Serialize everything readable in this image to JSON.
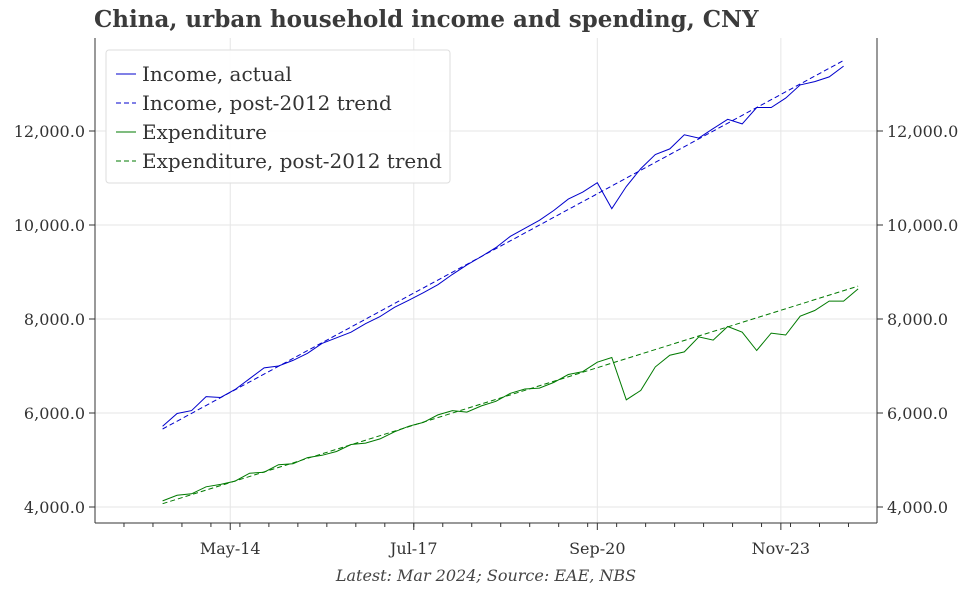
{
  "chart_data": {
    "type": "line",
    "title": "China, urban household income and spending, CNY",
    "source_note": "Latest: Mar 2024; Source: EAE, NBS",
    "xlabel": "",
    "ylabel": "",
    "x_ticks": [
      "May-14",
      "Jul-17",
      "Sep-20",
      "Nov-23"
    ],
    "y_ticks": [
      "4,000.0",
      "6,000.0",
      "8,000.0",
      "10,000.0",
      "12,000.0"
    ],
    "ylim": [
      3800,
      14000
    ],
    "grid": true,
    "legend_position": "top-left",
    "series": [
      {
        "name": "Income, actual",
        "color": "#0000cc",
        "dash": "solid",
        "points": [
          [
            "2013-03",
            5720
          ],
          [
            "2013-06",
            5990
          ],
          [
            "2013-09",
            6050
          ],
          [
            "2013-12",
            6350
          ],
          [
            "2014-03",
            6330
          ],
          [
            "2014-06",
            6500
          ],
          [
            "2014-09",
            6730
          ],
          [
            "2014-12",
            6960
          ],
          [
            "2015-03",
            7000
          ],
          [
            "2015-06",
            7120
          ],
          [
            "2015-09",
            7270
          ],
          [
            "2015-12",
            7480
          ],
          [
            "2016-03",
            7600
          ],
          [
            "2016-06",
            7720
          ],
          [
            "2016-09",
            7900
          ],
          [
            "2016-12",
            8050
          ],
          [
            "2017-03",
            8250
          ],
          [
            "2017-06",
            8400
          ],
          [
            "2017-09",
            8560
          ],
          [
            "2017-12",
            8730
          ],
          [
            "2018-03",
            8950
          ],
          [
            "2018-06",
            9150
          ],
          [
            "2018-09",
            9330
          ],
          [
            "2018-12",
            9520
          ],
          [
            "2019-03",
            9760
          ],
          [
            "2019-06",
            9930
          ],
          [
            "2019-09",
            10100
          ],
          [
            "2019-12",
            10310
          ],
          [
            "2020-03",
            10550
          ],
          [
            "2020-06",
            10700
          ],
          [
            "2020-09",
            10900
          ],
          [
            "2020-12",
            10350
          ],
          [
            "2021-03",
            10820
          ],
          [
            "2021-06",
            11200
          ],
          [
            "2021-09",
            11500
          ],
          [
            "2021-12",
            11620
          ],
          [
            "2022-03",
            11920
          ],
          [
            "2022-06",
            11850
          ],
          [
            "2022-09",
            12050
          ],
          [
            "2022-12",
            12250
          ],
          [
            "2023-03",
            12150
          ],
          [
            "2023-06",
            12500
          ],
          [
            "2023-09",
            12500
          ],
          [
            "2023-12",
            12700
          ],
          [
            "2024-03",
            12980
          ],
          [
            "2024-06",
            13050
          ],
          [
            "2024-09",
            13150
          ],
          [
            "2024-12",
            13380
          ]
        ]
      },
      {
        "name": "Income, post-2012 trend",
        "color": "#0000cc",
        "dash": "dashed",
        "points": [
          [
            "2013-03",
            5660
          ],
          [
            "2024-12",
            13500
          ]
        ]
      },
      {
        "name": "Expenditure",
        "color": "#007a00",
        "dash": "solid",
        "points": [
          [
            "2013-03",
            4130
          ],
          [
            "2013-06",
            4250
          ],
          [
            "2013-09",
            4280
          ],
          [
            "2013-12",
            4430
          ],
          [
            "2014-03",
            4480
          ],
          [
            "2014-06",
            4550
          ],
          [
            "2014-09",
            4720
          ],
          [
            "2014-12",
            4740
          ],
          [
            "2015-03",
            4900
          ],
          [
            "2015-06",
            4920
          ],
          [
            "2015-09",
            5050
          ],
          [
            "2015-12",
            5100
          ],
          [
            "2016-03",
            5180
          ],
          [
            "2016-06",
            5330
          ],
          [
            "2016-09",
            5360
          ],
          [
            "2016-12",
            5450
          ],
          [
            "2017-03",
            5600
          ],
          [
            "2017-06",
            5720
          ],
          [
            "2017-09",
            5800
          ],
          [
            "2017-12",
            5960
          ],
          [
            "2018-03",
            6050
          ],
          [
            "2018-06",
            6020
          ],
          [
            "2018-09",
            6150
          ],
          [
            "2018-12",
            6250
          ],
          [
            "2019-03",
            6420
          ],
          [
            "2019-06",
            6510
          ],
          [
            "2019-09",
            6530
          ],
          [
            "2019-12",
            6650
          ],
          [
            "2020-03",
            6820
          ],
          [
            "2020-06",
            6880
          ],
          [
            "2020-09",
            7080
          ],
          [
            "2020-12",
            7180
          ],
          [
            "2021-03",
            6280
          ],
          [
            "2021-06",
            6480
          ],
          [
            "2021-09",
            6980
          ],
          [
            "2021-12",
            7230
          ],
          [
            "2022-03",
            7300
          ],
          [
            "2022-06",
            7620
          ],
          [
            "2022-09",
            7550
          ],
          [
            "2022-12",
            7840
          ],
          [
            "2023-03",
            7720
          ],
          [
            "2023-06",
            7330
          ],
          [
            "2023-09",
            7700
          ],
          [
            "2023-12",
            7660
          ],
          [
            "2024-03",
            8060
          ],
          [
            "2024-06",
            8180
          ],
          [
            "2024-09",
            8380
          ],
          [
            "2024-12",
            8380
          ],
          [
            "2025-03",
            8640
          ]
        ]
      },
      {
        "name": "Expenditure, post-2012 trend",
        "color": "#007a00",
        "dash": "dashed",
        "points": [
          [
            "2013-03",
            4070
          ],
          [
            "2025-03",
            8700
          ]
        ]
      }
    ]
  }
}
